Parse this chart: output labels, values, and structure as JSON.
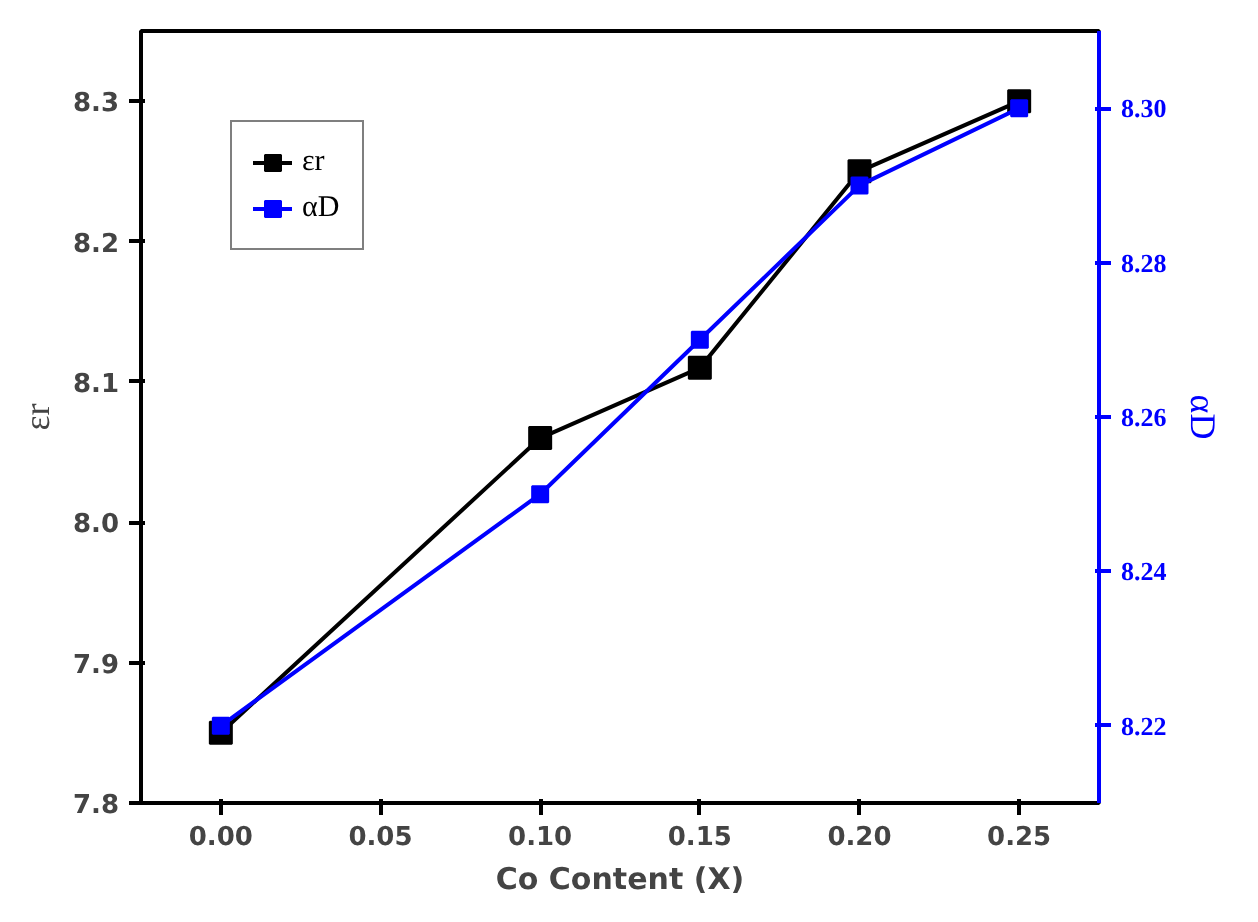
{
  "chart_data": {
    "type": "line",
    "xlabel": "Co Content (X)",
    "ylabel": "εr",
    "y2label": "αD",
    "x": [
      0.0,
      0.1,
      0.15,
      0.2,
      0.25
    ],
    "series": [
      {
        "name": "εr",
        "color": "#000000",
        "values": [
          7.85,
          8.06,
          8.11,
          8.25,
          8.3
        ]
      },
      {
        "name": "αD",
        "color": "#0000ff",
        "values": [
          8.22,
          8.25,
          8.27,
          8.29,
          8.3
        ],
        "axis": "y2"
      }
    ],
    "xlim": [
      -0.025,
      0.275
    ],
    "xticks": [
      {
        "value": 0.0,
        "label": "0.00"
      },
      {
        "value": 0.05,
        "label": "0.05"
      },
      {
        "value": 0.1,
        "label": "0.10"
      },
      {
        "value": 0.15,
        "label": "0.15"
      },
      {
        "value": 0.2,
        "label": "0.20"
      },
      {
        "value": 0.25,
        "label": "0.25"
      }
    ],
    "ylim": [
      7.8,
      8.35
    ],
    "yticks": [
      7.8,
      7.9,
      {
        "value": 8.0,
        "label": "8.0"
      },
      8.1,
      8.2,
      8.3
    ],
    "y2lim": [
      8.21,
      8.31
    ],
    "y2ticks": [
      8.22,
      8.24,
      8.26,
      8.28,
      {
        "value": 8.3,
        "label": "8.30"
      }
    ],
    "marker": "square",
    "line_style": "solid",
    "grid": false,
    "legend": "top left"
  }
}
